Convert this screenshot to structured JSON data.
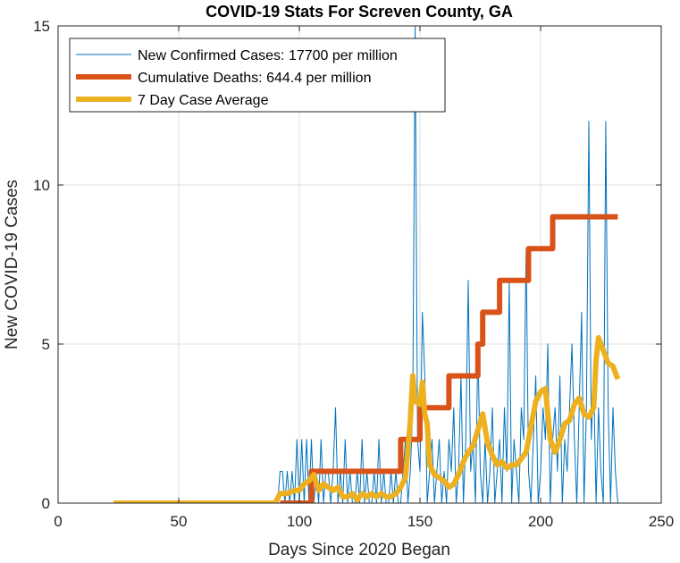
{
  "chart_data": {
    "type": "line",
    "title": "COVID-19 Stats For Screven County, GA",
    "xlabel": "Days Since 2020 Began",
    "ylabel": "New COVID-19 Cases",
    "xlim": [
      0,
      250
    ],
    "ylim": [
      0,
      15
    ],
    "xticks": [
      0,
      50,
      100,
      150,
      200,
      250
    ],
    "yticks": [
      0,
      5,
      10,
      15
    ],
    "grid": true,
    "legend_position": "top-left",
    "series": [
      {
        "name": "New Confirmed Cases: 17700 per million",
        "color": "#0072BD",
        "style": "thin",
        "x": [
          23,
          30,
          40,
          50,
          60,
          70,
          80,
          90,
          91,
          92,
          93,
          94,
          95,
          96,
          97,
          98,
          99,
          100,
          101,
          102,
          103,
          104,
          105,
          106,
          107,
          108,
          109,
          110,
          111,
          112,
          113,
          114,
          115,
          116,
          117,
          118,
          119,
          120,
          121,
          122,
          123,
          124,
          125,
          126,
          127,
          128,
          129,
          130,
          131,
          132,
          133,
          134,
          135,
          136,
          137,
          138,
          139,
          140,
          141,
          142,
          143,
          144,
          145,
          146,
          147,
          148,
          149,
          150,
          151,
          152,
          153,
          154,
          155,
          156,
          157,
          158,
          159,
          160,
          161,
          162,
          163,
          164,
          165,
          166,
          167,
          168,
          169,
          170,
          171,
          172,
          173,
          174,
          175,
          176,
          177,
          178,
          179,
          180,
          181,
          182,
          183,
          184,
          185,
          186,
          187,
          188,
          189,
          190,
          191,
          192,
          193,
          194,
          195,
          196,
          197,
          198,
          199,
          200,
          201,
          202,
          203,
          204,
          205,
          206,
          207,
          208,
          209,
          210,
          211,
          212,
          213,
          214,
          215,
          216,
          217,
          218,
          219,
          220,
          221,
          222,
          223,
          224,
          225,
          226,
          227,
          228,
          229,
          230,
          231,
          232
        ],
        "values": [
          0,
          0,
          0,
          0,
          0,
          0,
          0,
          0,
          0,
          1,
          1,
          0,
          1,
          0,
          1,
          0,
          2,
          0,
          2,
          0,
          2,
          0,
          2,
          0,
          1,
          0,
          2,
          0,
          1,
          1,
          0,
          1,
          3,
          0,
          1,
          0,
          2,
          0,
          1,
          0,
          0,
          1,
          0,
          2,
          0,
          1,
          0,
          0,
          1,
          0,
          2,
          0,
          1,
          0,
          0,
          1,
          0,
          1,
          0,
          0,
          1,
          2,
          0,
          1,
          3,
          15,
          2,
          1,
          6,
          4,
          0,
          1,
          2,
          0,
          1,
          2,
          0,
          1,
          0,
          2,
          1,
          3,
          0,
          1,
          4,
          0,
          2,
          7,
          1,
          2,
          0,
          5,
          1,
          0,
          2,
          0,
          1,
          3,
          0,
          1,
          2,
          0,
          3,
          1,
          7,
          0,
          2,
          1,
          0,
          3,
          2,
          8,
          1,
          0,
          2,
          4,
          0,
          1,
          3,
          2,
          5,
          0,
          2,
          3,
          1,
          4,
          0,
          2,
          1,
          3,
          5,
          2,
          0,
          3,
          6,
          0,
          3,
          12,
          2,
          4,
          0,
          3,
          1,
          0,
          12,
          3,
          0,
          3,
          1,
          0
        ],
        "color_note": "thin blue line"
      },
      {
        "name": "Cumulative Deaths: 644.4 per million",
        "color": "#D95319",
        "style": "thick-step",
        "x": [
          92,
          105,
          105,
          142,
          142,
          150,
          150,
          162,
          162,
          174,
          174,
          176,
          176,
          178,
          178,
          183,
          183,
          195,
          195,
          197,
          197,
          205,
          205,
          232
        ],
        "values": [
          0,
          0,
          1,
          1,
          2,
          2,
          3,
          3,
          4,
          4,
          5,
          5,
          6,
          6,
          6,
          6,
          7,
          7,
          8,
          8,
          8,
          8,
          9,
          9
        ]
      },
      {
        "name": "7 Day Case Average",
        "color": "#EDB120",
        "style": "thick",
        "x": [
          23,
          30,
          40,
          50,
          60,
          70,
          80,
          90,
          92,
          95,
          98,
          100,
          102,
          104,
          106,
          108,
          110,
          112,
          114,
          116,
          118,
          120,
          122,
          124,
          126,
          128,
          130,
          132,
          134,
          136,
          138,
          140,
          142,
          144,
          146,
          147,
          148,
          150,
          151,
          152,
          153,
          154,
          156,
          158,
          160,
          162,
          164,
          166,
          168,
          170,
          172,
          174,
          176,
          178,
          180,
          182,
          184,
          186,
          188,
          190,
          192,
          194,
          196,
          198,
          200,
          202,
          204,
          206,
          208,
          210,
          212,
          214,
          216,
          218,
          220,
          222,
          223,
          224,
          226,
          228,
          230,
          232
        ],
        "values": [
          0,
          0,
          0,
          0,
          0,
          0,
          0,
          0,
          0.3,
          0.3,
          0.4,
          0.4,
          0.6,
          0.7,
          0.9,
          0.4,
          0.6,
          0.5,
          0.4,
          0.5,
          0.2,
          0.2,
          0.3,
          0.1,
          0.3,
          0.2,
          0.3,
          0.2,
          0.3,
          0.2,
          0.2,
          0.3,
          0.5,
          0.8,
          2.6,
          4.0,
          3.2,
          3.1,
          3.8,
          2.8,
          2.5,
          1.2,
          0.9,
          0.8,
          0.7,
          0.5,
          0.6,
          0.9,
          1.3,
          1.6,
          1.8,
          2.3,
          2.8,
          1.9,
          1.5,
          1.2,
          1.3,
          1.1,
          1.2,
          1.2,
          1.4,
          1.6,
          2.4,
          3.2,
          3.5,
          3.6,
          2.0,
          1.6,
          2.0,
          2.5,
          2.6,
          3.1,
          3.3,
          2.8,
          2.7,
          3.0,
          4.5,
          5.2,
          4.8,
          4.4,
          4.3,
          3.9
        ]
      }
    ]
  }
}
